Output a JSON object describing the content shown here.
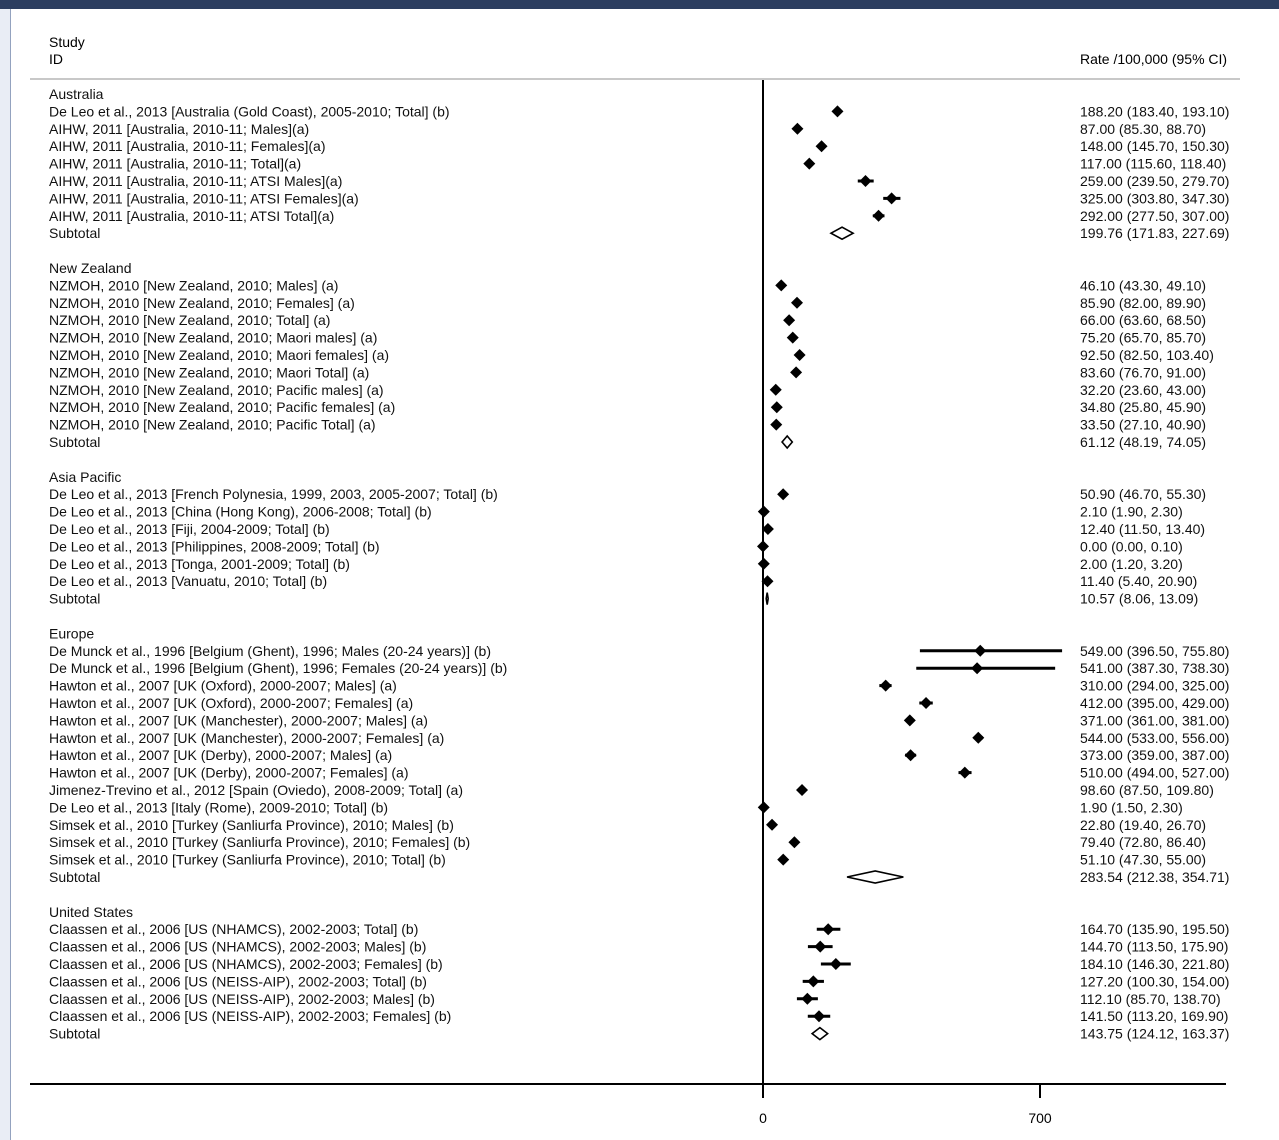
{
  "header": {
    "study_label": "Study",
    "id_label": "ID",
    "rate_label": "Rate /100,000 (95% CI)"
  },
  "axis": {
    "ticks": [
      0,
      700
    ],
    "tick_labels": [
      "0",
      "700"
    ]
  },
  "chart_data": {
    "type": "forest",
    "xlim": [
      0,
      1180
    ],
    "xticks": [
      0,
      700
    ],
    "reference_line": 0,
    "groups": [
      {
        "name": "Australia",
        "studies": [
          {
            "label": "De Leo et al., 2013 [Australia (Gold Coast), 2005-2010; Total] (b)",
            "est": 188.2,
            "lo": 183.4,
            "hi": 193.1,
            "text": "188.20 (183.40, 193.10)"
          },
          {
            "label": "AIHW, 2011 [Australia, 2010-11; Males](a)",
            "est": 87.0,
            "lo": 85.3,
            "hi": 88.7,
            "text": "87.00 (85.30, 88.70)"
          },
          {
            "label": "AIHW, 2011 [Australia, 2010-11; Females](a)",
            "est": 148.0,
            "lo": 145.7,
            "hi": 150.3,
            "text": "148.00 (145.70, 150.30)"
          },
          {
            "label": "AIHW, 2011 [Australia, 2010-11; Total](a)",
            "est": 117.0,
            "lo": 115.6,
            "hi": 118.4,
            "text": "117.00 (115.60, 118.40)"
          },
          {
            "label": "AIHW, 2011 [Australia, 2010-11; ATSI Males](a)",
            "est": 259.0,
            "lo": 239.5,
            "hi": 279.7,
            "text": "259.00 (239.50, 279.70)"
          },
          {
            "label": "AIHW, 2011 [Australia, 2010-11; ATSI Females](a)",
            "est": 325.0,
            "lo": 303.8,
            "hi": 347.3,
            "text": "325.00 (303.80, 347.30)"
          },
          {
            "label": "AIHW, 2011 [Australia, 2010-11; ATSI Total](a)",
            "est": 292.0,
            "lo": 277.5,
            "hi": 307.0,
            "text": "292.00 (277.50, 307.00)"
          }
        ],
        "subtotal": {
          "label": "Subtotal",
          "est": 199.76,
          "lo": 171.83,
          "hi": 227.69,
          "text": "199.76 (171.83, 227.69)"
        }
      },
      {
        "name": "New Zealand",
        "studies": [
          {
            "label": "NZMOH, 2010 [New Zealand, 2010; Males] (a)",
            "est": 46.1,
            "lo": 43.3,
            "hi": 49.1,
            "text": "46.10 (43.30, 49.10)"
          },
          {
            "label": "NZMOH, 2010 [New Zealand, 2010; Females] (a)",
            "est": 85.9,
            "lo": 82.0,
            "hi": 89.9,
            "text": "85.90 (82.00, 89.90)"
          },
          {
            "label": "NZMOH, 2010 [New Zealand, 2010; Total] (a)",
            "est": 66.0,
            "lo": 63.6,
            "hi": 68.5,
            "text": "66.00 (63.60, 68.50)"
          },
          {
            "label": "NZMOH, 2010 [New Zealand, 2010; Maori males] (a)",
            "est": 75.2,
            "lo": 65.7,
            "hi": 85.7,
            "text": "75.20 (65.70, 85.70)"
          },
          {
            "label": "NZMOH, 2010 [New Zealand, 2010; Maori females] (a)",
            "est": 92.5,
            "lo": 82.5,
            "hi": 103.4,
            "text": "92.50 (82.50, 103.40)"
          },
          {
            "label": "NZMOH, 2010 [New Zealand, 2010; Maori Total] (a)",
            "est": 83.6,
            "lo": 76.7,
            "hi": 91.0,
            "text": "83.60 (76.70, 91.00)"
          },
          {
            "label": "NZMOH, 2010 [New Zealand, 2010; Pacific males] (a)",
            "est": 32.2,
            "lo": 23.6,
            "hi": 43.0,
            "text": "32.20 (23.60, 43.00)"
          },
          {
            "label": "NZMOH, 2010 [New Zealand, 2010; Pacific females] (a)",
            "est": 34.8,
            "lo": 25.8,
            "hi": 45.9,
            "text": "34.80 (25.80, 45.90)"
          },
          {
            "label": "NZMOH, 2010 [New Zealand, 2010; Pacific Total] (a)",
            "est": 33.5,
            "lo": 27.1,
            "hi": 40.9,
            "text": "33.50 (27.10, 40.90)"
          }
        ],
        "subtotal": {
          "label": "Subtotal",
          "est": 61.12,
          "lo": 48.19,
          "hi": 74.05,
          "text": "61.12 (48.19, 74.05)"
        }
      },
      {
        "name": "Asia Pacific",
        "studies": [
          {
            "label": "De Leo et al., 2013 [French Polynesia, 1999, 2003, 2005-2007; Total] (b)",
            "est": 50.9,
            "lo": 46.7,
            "hi": 55.3,
            "text": "50.90 (46.70, 55.30)"
          },
          {
            "label": "De Leo et al., 2013 [China (Hong Kong), 2006-2008; Total] (b)",
            "est": 2.1,
            "lo": 1.9,
            "hi": 2.3,
            "text": "2.10 (1.90, 2.30)"
          },
          {
            "label": "De Leo et al., 2013 [Fiji, 2004-2009; Total] (b)",
            "est": 12.4,
            "lo": 11.5,
            "hi": 13.4,
            "text": "12.40 (11.50, 13.40)"
          },
          {
            "label": "De Leo et al., 2013 [Philippines, 2008-2009; Total] (b)",
            "est": 0.0,
            "lo": 0.0,
            "hi": 0.1,
            "text": "0.00 (0.00, 0.10)"
          },
          {
            "label": "De Leo et al., 2013 [Tonga, 2001-2009; Total] (b)",
            "est": 2.0,
            "lo": 1.2,
            "hi": 3.2,
            "text": "2.00 (1.20, 3.20)"
          },
          {
            "label": "De Leo et al., 2013 [Vanuatu, 2010; Total] (b)",
            "est": 11.4,
            "lo": 5.4,
            "hi": 20.9,
            "text": "11.40 (5.40, 20.90)"
          }
        ],
        "subtotal": {
          "label": "Subtotal",
          "est": 10.57,
          "lo": 8.06,
          "hi": 13.09,
          "text": "10.57 (8.06, 13.09)"
        }
      },
      {
        "name": "Europe",
        "studies": [
          {
            "label": "De Munck et al., 1996 [Belgium (Ghent), 1996; Males (20-24 years)] (b)",
            "est": 549.0,
            "lo": 396.5,
            "hi": 755.8,
            "text": "549.00 (396.50, 755.80)"
          },
          {
            "label": "De Munck et al., 1996 [Belgium (Ghent), 1996; Females (20-24 years)] (b)",
            "est": 541.0,
            "lo": 387.3,
            "hi": 738.3,
            "text": "541.00 (387.30, 738.30)"
          },
          {
            "label": "Hawton et al., 2007 [UK (Oxford), 2000-2007; Males] (a)",
            "est": 310.0,
            "lo": 294.0,
            "hi": 325.0,
            "text": "310.00 (294.00, 325.00)"
          },
          {
            "label": "Hawton et al., 2007 [UK (Oxford), 2000-2007; Females] (a)",
            "est": 412.0,
            "lo": 395.0,
            "hi": 429.0,
            "text": "412.00 (395.00, 429.00)"
          },
          {
            "label": "Hawton et al., 2007 [UK (Manchester), 2000-2007; Males] (a)",
            "est": 371.0,
            "lo": 361.0,
            "hi": 381.0,
            "text": "371.00 (361.00, 381.00)"
          },
          {
            "label": "Hawton et al., 2007 [UK (Manchester), 2000-2007; Females] (a)",
            "est": 544.0,
            "lo": 533.0,
            "hi": 556.0,
            "text": "544.00 (533.00, 556.00)"
          },
          {
            "label": "Hawton et al., 2007 [UK (Derby), 2000-2007; Males] (a)",
            "est": 373.0,
            "lo": 359.0,
            "hi": 387.0,
            "text": "373.00 (359.00, 387.00)"
          },
          {
            "label": "Hawton et al., 2007 [UK (Derby), 2000-2007; Females] (a)",
            "est": 510.0,
            "lo": 494.0,
            "hi": 527.0,
            "text": "510.00 (494.00, 527.00)"
          },
          {
            "label": "Jimenez-Trevino et al., 2012 [Spain (Oviedo), 2008-2009; Total] (a)",
            "est": 98.6,
            "lo": 87.5,
            "hi": 109.8,
            "text": "98.60 (87.50, 109.80)"
          },
          {
            "label": "De Leo et al., 2013 [Italy (Rome), 2009-2010; Total] (b)",
            "est": 1.9,
            "lo": 1.5,
            "hi": 2.3,
            "text": "1.90 (1.50, 2.30)"
          },
          {
            "label": "Simsek et al., 2010 [Turkey (Sanliurfa Province), 2010; Males] (b)",
            "est": 22.8,
            "lo": 19.4,
            "hi": 26.7,
            "text": "22.80 (19.40, 26.70)"
          },
          {
            "label": "Simsek et al., 2010 [Turkey (Sanliurfa Province), 2010; Females] (b)",
            "est": 79.4,
            "lo": 72.8,
            "hi": 86.4,
            "text": "79.40 (72.80, 86.40)"
          },
          {
            "label": "Simsek et al., 2010 [Turkey (Sanliurfa Province), 2010; Total] (b)",
            "est": 51.1,
            "lo": 47.3,
            "hi": 55.0,
            "text": "51.10 (47.30, 55.00)"
          }
        ],
        "subtotal": {
          "label": "Subtotal",
          "est": 283.54,
          "lo": 212.38,
          "hi": 354.71,
          "text": "283.54 (212.38, 354.71)"
        }
      },
      {
        "name": "United States",
        "studies": [
          {
            "label": "Claassen et al., 2006 [US (NHAMCS), 2002-2003; Total] (b)",
            "est": 164.7,
            "lo": 135.9,
            "hi": 195.5,
            "text": "164.70 (135.90, 195.50)"
          },
          {
            "label": "Claassen et al., 2006 [US (NHAMCS), 2002-2003; Males] (b)",
            "est": 144.7,
            "lo": 113.5,
            "hi": 175.9,
            "text": "144.70 (113.50, 175.90)"
          },
          {
            "label": "Claassen et al., 2006 [US (NHAMCS), 2002-2003; Females] (b)",
            "est": 184.1,
            "lo": 146.3,
            "hi": 221.8,
            "text": "184.10 (146.30, 221.80)"
          },
          {
            "label": "Claassen et al., 2006 [US (NEISS-AIP), 2002-2003; Total] (b)",
            "est": 127.2,
            "lo": 100.3,
            "hi": 154.0,
            "text": "127.20 (100.30, 154.00)"
          },
          {
            "label": "Claassen et al., 2006 [US (NEISS-AIP), 2002-2003; Males] (b)",
            "est": 112.1,
            "lo": 85.7,
            "hi": 138.7,
            "text": "112.10 (85.70, 138.70)"
          },
          {
            "label": "Claassen et al., 2006 [US (NEISS-AIP), 2002-2003; Females] (b)",
            "est": 141.5,
            "lo": 113.2,
            "hi": 169.9,
            "text": "141.50 (113.20, 169.90)"
          }
        ],
        "subtotal": {
          "label": "Subtotal",
          "est": 143.75,
          "lo": 124.12,
          "hi": 163.37,
          "text": "143.75 (124.12, 163.37)"
        }
      }
    ]
  },
  "colors": {
    "ink": "#000000",
    "topbar": "#2c3e60",
    "separator": "#c8c8c8"
  }
}
